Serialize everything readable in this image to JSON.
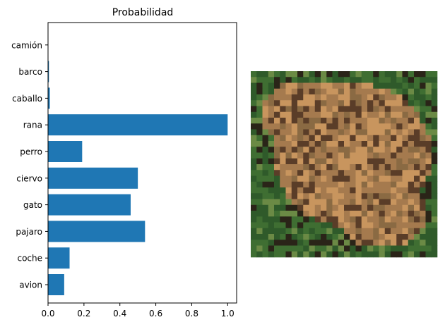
{
  "chart_data": {
    "type": "bar",
    "orientation": "horizontal",
    "title": "Probabilidad",
    "xlabel": "",
    "ylabel": "",
    "categories": [
      "avion",
      "coche",
      "pajaro",
      "gato",
      "ciervo",
      "perro",
      "rana",
      "caballo",
      "barco",
      "camión"
    ],
    "values": [
      0.09,
      0.12,
      0.54,
      0.46,
      0.5,
      0.19,
      1.0,
      0.01,
      0.005,
      0.0
    ],
    "xlim": [
      0.0,
      1.05
    ],
    "xticks": [
      "0.0",
      "0.2",
      "0.4",
      "0.6",
      "0.8",
      "1.0"
    ],
    "bar_color": "#1f77b4",
    "grid": false,
    "legend": "none"
  },
  "image_panel": {
    "subject": "frog",
    "palette": [
      "#2f5a2a",
      "#3f6e32",
      "#6b8a45",
      "#8a6a43",
      "#a57a4e",
      "#c8955e",
      "#5a3d28",
      "#2a2418"
    ]
  }
}
